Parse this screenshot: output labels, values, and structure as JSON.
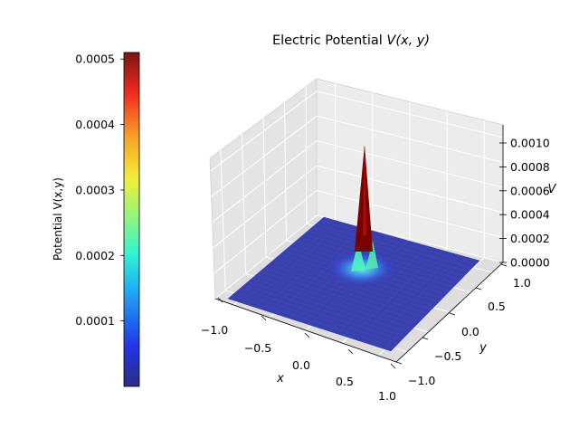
{
  "chart_data": {
    "type": "surface",
    "title": "Electric Potential V(x, y)",
    "title_main": "Electric Potential ",
    "title_math": "V(x, y)",
    "xlabel": "x",
    "ylabel": "y",
    "zlabel": "V",
    "x_range": [
      -1.0,
      1.0
    ],
    "y_range": [
      -1.0,
      1.0
    ],
    "z_range": [
      0.0,
      0.0011
    ],
    "x_ticks": [
      "−1.0",
      "−0.5",
      "0.0",
      "0.5",
      "1.0"
    ],
    "y_ticks": [
      "−1.0",
      "−0.5",
      "0.0",
      "0.5",
      "1.0"
    ],
    "z_ticks": [
      "0.0000",
      "0.0002",
      "0.0004",
      "0.0006",
      "0.0008",
      "0.0010"
    ],
    "peak": {
      "x": 0.0,
      "y": 0.0,
      "value": 0.00108
    },
    "colormap": "jet",
    "colorbar": {
      "label": "Potential V(x,y)",
      "min": 0.0,
      "max": 0.00051,
      "ticks": [
        "0.0001",
        "0.0002",
        "0.0003",
        "0.0004",
        "0.0005"
      ]
    },
    "grid": true
  },
  "colors": {
    "surface_base": "#2a32a8",
    "pane_back": "#eaeaea",
    "pane_side": "#e4e4e4",
    "pane_floor": "#dedede",
    "peak": "#7a0000"
  }
}
